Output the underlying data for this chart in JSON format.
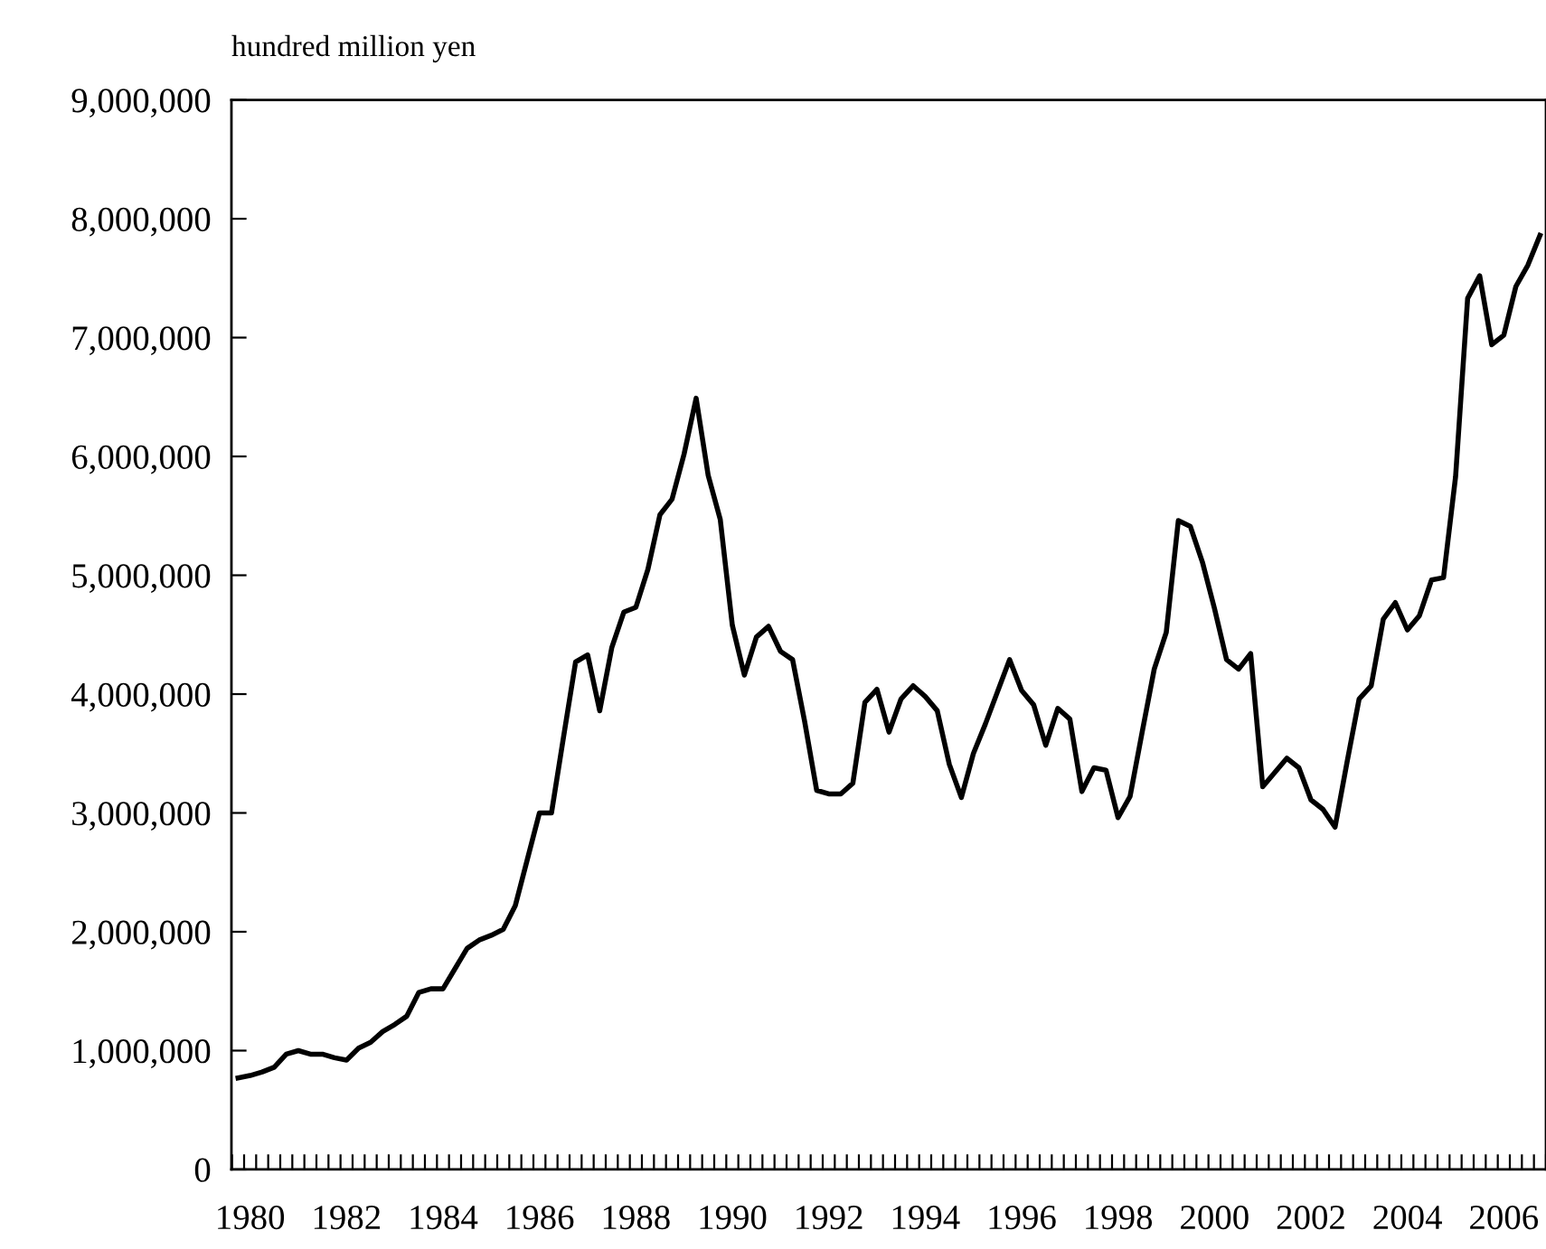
{
  "chart_data": {
    "type": "line",
    "ylabel": "hundred million yen",
    "categories": [
      null,
      "1980",
      null,
      null,
      null,
      null,
      null,
      null,
      null,
      "1982",
      null,
      null,
      null,
      null,
      null,
      null,
      null,
      "1984",
      null,
      null,
      null,
      null,
      null,
      null,
      null,
      "1986",
      null,
      null,
      null,
      null,
      null,
      null,
      null,
      "1988",
      null,
      null,
      null,
      null,
      null,
      null,
      null,
      "1990",
      null,
      null,
      null,
      null,
      null,
      null,
      null,
      "1992",
      null,
      null,
      null,
      null,
      null,
      null,
      null,
      "1994",
      null,
      null,
      null,
      null,
      null,
      null,
      null,
      "1996",
      null,
      null,
      null,
      null,
      null,
      null,
      null,
      "1998",
      null,
      null,
      null,
      null,
      null,
      null,
      null,
      "2000",
      null,
      null,
      null,
      null,
      null,
      null,
      null,
      "2002",
      null,
      null,
      null,
      null,
      null,
      null,
      null,
      "2004",
      null,
      null,
      null,
      null,
      null,
      null,
      null,
      "2006",
      null,
      null,
      null
    ],
    "series": [
      {
        "color": "#000000",
        "values": [
          770000,
          790000,
          820000,
          860000,
          970000,
          1000000,
          970000,
          970000,
          940000,
          920000,
          1020000,
          1070000,
          1160000,
          1220000,
          1290000,
          1490000,
          1520000,
          1520000,
          1690000,
          1860000,
          1930000,
          1970000,
          2020000,
          2220000,
          2610000,
          3000000,
          3000000,
          3640000,
          4270000,
          4330000,
          3860000,
          4390000,
          4690000,
          4730000,
          5050000,
          5510000,
          5640000,
          6020000,
          6490000,
          5840000,
          5470000,
          4580000,
          4160000,
          4480000,
          4570000,
          4360000,
          4290000,
          3770000,
          3190000,
          3160000,
          3160000,
          3250000,
          3930000,
          4040000,
          3680000,
          3960000,
          4070000,
          3980000,
          3860000,
          3410000,
          3130000,
          3500000,
          3750000,
          4020000,
          4290000,
          4030000,
          3910000,
          3570000,
          3880000,
          3790000,
          3180000,
          3380000,
          3360000,
          2960000,
          3140000,
          3680000,
          4210000,
          4520000,
          5460000,
          5410000,
          5110000,
          4720000,
          4290000,
          4210000,
          4340000,
          3220000,
          3340000,
          3460000,
          3380000,
          3110000,
          3030000,
          2880000,
          3430000,
          3960000,
          4070000,
          4630000,
          4770000,
          4540000,
          4660000,
          4960000,
          4980000,
          5830000,
          7330000,
          7520000,
          6940000,
          7020000,
          7430000,
          7610000,
          7860000
        ]
      }
    ],
    "ylim": [
      0,
      9000000
    ],
    "yticks": [
      {
        "value": 0,
        "label": "0"
      },
      {
        "value": 1000000,
        "label": "1,000,000"
      },
      {
        "value": 2000000,
        "label": "2,000,000"
      },
      {
        "value": 3000000,
        "label": "3,000,000"
      },
      {
        "value": 4000000,
        "label": "4,000,000"
      },
      {
        "value": 5000000,
        "label": "5,000,000"
      },
      {
        "value": 6000000,
        "label": "6,000,000"
      },
      {
        "value": 7000000,
        "label": "7,000,000"
      },
      {
        "value": 8000000,
        "label": "8,000,000"
      },
      {
        "value": 9000000,
        "label": "9,000,000"
      }
    ],
    "grid": false,
    "legend": false,
    "marker": "none",
    "line_style": "solid"
  }
}
